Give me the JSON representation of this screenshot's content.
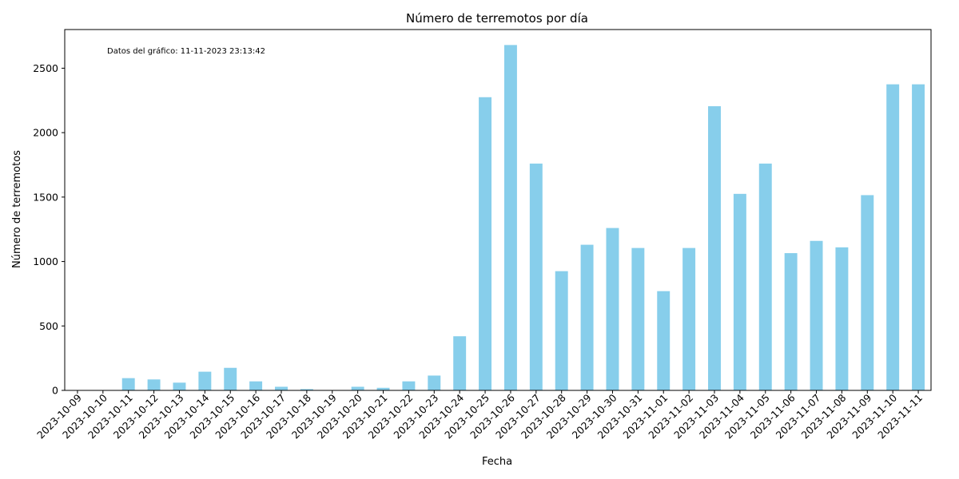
{
  "chart_data": {
    "type": "bar",
    "title": "Número de terremotos por día",
    "xlabel": "Fecha",
    "ylabel": "Número de terremotos",
    "annotation": "Datos del gráfico: 11-11-2023 23:13:42",
    "ylim": [
      0,
      2800
    ],
    "yticks": [
      0,
      500,
      1000,
      1500,
      2000,
      2500
    ],
    "categories": [
      "2023-10-09",
      "2023-10-10",
      "2023-10-11",
      "2023-10-12",
      "2023-10-13",
      "2023-10-14",
      "2023-10-15",
      "2023-10-16",
      "2023-10-17",
      "2023-10-18",
      "2023-10-19",
      "2023-10-20",
      "2023-10-21",
      "2023-10-22",
      "2023-10-23",
      "2023-10-24",
      "2023-10-25",
      "2023-10-26",
      "2023-10-27",
      "2023-10-28",
      "2023-10-29",
      "2023-10-30",
      "2023-10-31",
      "2023-11-01",
      "2023-11-02",
      "2023-11-03",
      "2023-11-04",
      "2023-11-05",
      "2023-11-06",
      "2023-11-07",
      "2023-11-08",
      "2023-11-09",
      "2023-11-10",
      "2023-11-11"
    ],
    "values": [
      2,
      3,
      95,
      85,
      60,
      145,
      175,
      70,
      28,
      10,
      3,
      28,
      20,
      70,
      115,
      420,
      2275,
      2680,
      1760,
      925,
      1130,
      1260,
      1105,
      770,
      1105,
      2205,
      1525,
      1760,
      1065,
      1160,
      1110,
      1515,
      2375,
      2375
    ],
    "bar_color": "#87ceeb",
    "grid": false,
    "legend": "none"
  }
}
